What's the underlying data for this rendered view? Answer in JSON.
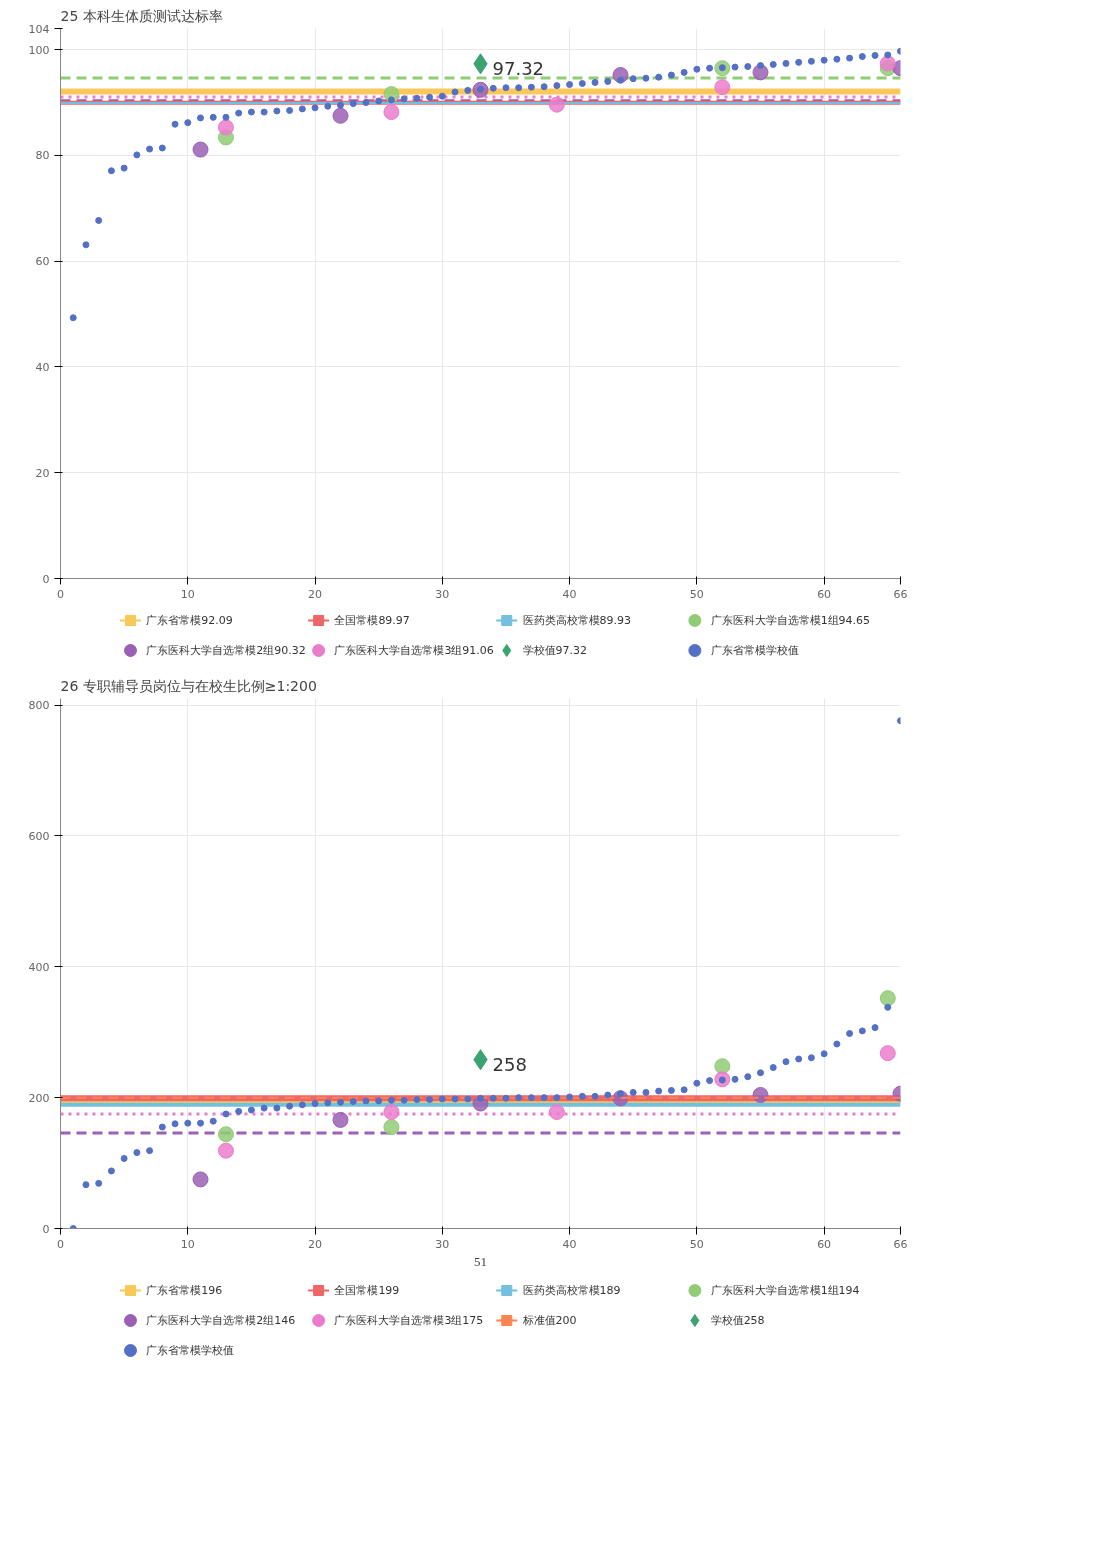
{
  "chart_data": [
    {
      "type": "scatter",
      "title": "25 本科生体质测试达标率",
      "xlim": [
        0,
        66
      ],
      "xticks": [
        0,
        10,
        20,
        30,
        40,
        50,
        60,
        66
      ],
      "ylim": [
        0,
        104
      ],
      "yticks": [
        0,
        20,
        40,
        60,
        80,
        100,
        104
      ],
      "grid": true,
      "legend": "bottom",
      "ref_lines": [
        {
          "axis": "y",
          "value": 94.65,
          "color": "#91cc75",
          "line_style": "dashed"
        },
        {
          "axis": "y",
          "value": 90.32,
          "color": "#9a60b4",
          "line_style": "dashed"
        },
        {
          "axis": "y",
          "value": 91.06,
          "color": "#ea7ccc",
          "line_style": "dotted"
        }
      ],
      "series": [
        {
          "name": "广东省常模92.09",
          "type": "line",
          "color": "#fac858",
          "x": [
            0,
            66
          ],
          "values": [
            92.09,
            92.09
          ],
          "line_style": "solid"
        },
        {
          "name": "全国常模89.97",
          "type": "line",
          "color": "#ee6666",
          "x": [
            0,
            66
          ],
          "values": [
            89.97,
            89.97
          ],
          "line_style": "solid"
        },
        {
          "name": "医药类高校常模89.93",
          "type": "line",
          "color": "#73c0de",
          "x": [
            0,
            66
          ],
          "values": [
            89.93,
            89.93
          ],
          "line_style": "solid"
        },
        {
          "name": "广东医科大学自选常模1组94.65",
          "color": "#91cc75",
          "x": [
            13,
            26,
            52,
            65
          ],
          "values": [
            83.4,
            91.6,
            96.5,
            96.5
          ]
        },
        {
          "name": "广东医科大学自选常模2组90.32",
          "color": "#9a60b4",
          "x": [
            11,
            22,
            33,
            44,
            55,
            66
          ],
          "values": [
            81.1,
            87.5,
            92.4,
            95.2,
            95.7,
            96.5
          ]
        },
        {
          "name": "广东医科大学自选常模3组91.06",
          "color": "#ea7ccc",
          "x": [
            13,
            26,
            39,
            52,
            65
          ],
          "values": [
            85.3,
            88.2,
            89.6,
            92.9,
            97.4
          ]
        },
        {
          "name": "学校值97.32",
          "marker": "diamond",
          "color": "#3ba272",
          "x": [
            33
          ],
          "values": [
            97.32
          ]
        },
        {
          "name": "广东省常模学校值",
          "color": "#5470c6",
          "x": [
            1,
            2,
            3,
            4,
            5,
            6,
            7,
            8,
            9,
            10,
            11,
            12,
            13,
            14,
            15,
            16,
            17,
            18,
            19,
            20,
            21,
            22,
            23,
            24,
            25,
            26,
            27,
            28,
            29,
            30,
            31,
            32,
            33,
            34,
            35,
            36,
            37,
            38,
            39,
            40,
            41,
            42,
            43,
            44,
            45,
            46,
            47,
            48,
            49,
            50,
            51,
            52,
            53,
            54,
            55,
            56,
            57,
            58,
            59,
            60,
            61,
            62,
            63,
            64,
            65,
            66
          ],
          "values": [
            49.3,
            63.1,
            67.7,
            77.1,
            77.6,
            80.1,
            81.2,
            81.4,
            85.9,
            86.2,
            87.1,
            87.2,
            87.2,
            88.0,
            88.2,
            88.2,
            88.4,
            88.5,
            88.8,
            89.0,
            89.3,
            89.5,
            89.8,
            90.0,
            90.3,
            90.5,
            90.7,
            90.8,
            91.0,
            91.2,
            92.0,
            92.3,
            92.5,
            92.7,
            92.8,
            92.8,
            92.9,
            93.0,
            93.2,
            93.4,
            93.6,
            93.8,
            94.0,
            94.2,
            94.5,
            94.6,
            94.8,
            95.2,
            95.7,
            96.3,
            96.5,
            96.6,
            96.7,
            96.8,
            97.0,
            97.2,
            97.4,
            97.6,
            97.8,
            98.0,
            98.2,
            98.4,
            98.7,
            98.9,
            99.0,
            99.7
          ]
        }
      ],
      "annotations": [
        {
          "text": "97.32",
          "x": 33,
          "y": 97.32
        }
      ]
    },
    {
      "type": "scatter",
      "title": "26 专职辅导员岗位与在校生比例≥1:200",
      "xlim": [
        0,
        66
      ],
      "xticks": [
        0,
        10,
        20,
        30,
        40,
        50,
        60,
        66
      ],
      "ylim": [
        0,
        810
      ],
      "yticks": [
        0,
        200,
        400,
        600,
        800
      ],
      "grid": true,
      "legend": "bottom",
      "ref_lines": [
        {
          "axis": "y",
          "value": 194,
          "color": "#91cc75",
          "line_style": "dashed"
        },
        {
          "axis": "y",
          "value": 146,
          "color": "#9a60b4",
          "line_style": "dashed"
        },
        {
          "axis": "y",
          "value": 175,
          "color": "#ea7ccc",
          "line_style": "dotted"
        }
      ],
      "series": [
        {
          "name": "广东省常模196",
          "type": "line",
          "color": "#fac858",
          "x": [
            0,
            66
          ],
          "values": [
            196,
            196
          ],
          "line_style": "solid"
        },
        {
          "name": "全国常模199",
          "type": "line",
          "color": "#ee6666",
          "x": [
            0,
            66
          ],
          "values": [
            199,
            199
          ],
          "line_style": "solid"
        },
        {
          "name": "医药类高校常模189",
          "type": "line",
          "color": "#73c0de",
          "x": [
            0,
            66
          ],
          "values": [
            189,
            189
          ],
          "line_style": "solid"
        },
        {
          "name": "广东医科大学自选常模1组194",
          "color": "#91cc75",
          "x": [
            13,
            26,
            52,
            65
          ],
          "values": [
            144,
            155,
            248,
            352
          ]
        },
        {
          "name": "广东医科大学自选常模2组146",
          "color": "#9a60b4",
          "x": [
            11,
            22,
            33,
            44,
            55,
            66
          ],
          "values": [
            75,
            166,
            191,
            199,
            204,
            206
          ]
        },
        {
          "name": "广东医科大学自选常模3组175",
          "color": "#ea7ccc",
          "x": [
            13,
            26,
            39,
            52,
            65
          ],
          "values": [
            119,
            178,
            178,
            228,
            268
          ]
        },
        {
          "name": "标准值200",
          "type": "line",
          "color": "#fc8452",
          "x": [
            0,
            66
          ],
          "values": [
            200,
            200
          ],
          "line_style": "dashed"
        },
        {
          "name": "学校值258",
          "marker": "diamond",
          "color": "#3ba272",
          "x": [
            33
          ],
          "values": [
            258
          ]
        },
        {
          "name": "广东省常模学校值",
          "color": "#5470c6",
          "x": [
            1,
            2,
            3,
            4,
            5,
            6,
            7,
            8,
            9,
            10,
            11,
            12,
            13,
            14,
            15,
            16,
            17,
            18,
            19,
            20,
            21,
            22,
            23,
            24,
            25,
            26,
            27,
            28,
            29,
            30,
            31,
            32,
            33,
            34,
            35,
            36,
            37,
            38,
            39,
            40,
            41,
            42,
            43,
            44,
            45,
            46,
            47,
            48,
            49,
            50,
            51,
            52,
            53,
            54,
            55,
            56,
            57,
            58,
            59,
            60,
            61,
            62,
            63,
            64,
            65,
            66
          ],
          "values": [
            0,
            67,
            69,
            88,
            107,
            116,
            119,
            155,
            160,
            161,
            161,
            164,
            175,
            179,
            181,
            184,
            184,
            187,
            189,
            191,
            192,
            193,
            194,
            195,
            195,
            196,
            196,
            197,
            197,
            198,
            198,
            198,
            199,
            199,
            199,
            200,
            200,
            200,
            200,
            201,
            202,
            202,
            204,
            206,
            208,
            208,
            210,
            211,
            212,
            222,
            226,
            227,
            228,
            232,
            238,
            246,
            255,
            259,
            261,
            267,
            282,
            298,
            302,
            307,
            338,
            776
          ]
        }
      ],
      "annotations": [
        {
          "text": "258",
          "x": 33,
          "y": 258
        },
        "51"
      ]
    }
  ]
}
